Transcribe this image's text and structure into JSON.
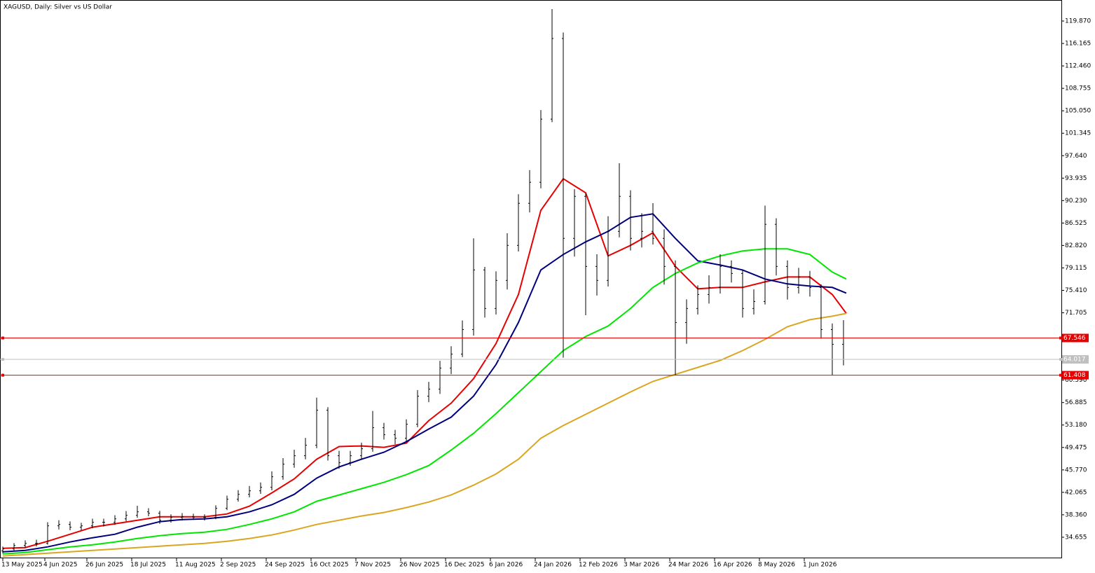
{
  "chart_data": {
    "type": "ohlc",
    "title": "XAGUSD, Daily:  Silver vs US Dollar",
    "color": "#000000",
    "xlim": [
      0,
      378.75
    ],
    "ylim": [
      31.18,
      123.34
    ],
    "x": [
      1,
      5,
      9,
      13,
      17,
      21,
      25,
      29,
      33,
      37,
      41,
      45,
      49,
      53,
      57,
      61,
      65,
      69,
      73,
      77,
      81,
      85,
      89,
      93,
      97,
      101,
      105,
      109,
      113,
      117,
      121,
      125,
      129,
      133,
      137,
      141,
      145,
      149,
      153,
      157,
      161,
      165,
      169,
      173,
      177,
      181,
      185,
      189,
      193,
      197,
      201,
      205,
      209,
      213,
      217,
      221,
      225,
      229,
      233,
      237,
      241,
      245,
      249,
      253,
      257,
      261,
      265,
      269,
      273,
      277,
      281,
      285,
      289,
      293,
      297,
      301
    ],
    "open": [
      32.4,
      32.72,
      33.3,
      33.64,
      33.64,
      36.54,
      36.77,
      36.31,
      36.54,
      37.12,
      37.12,
      37.69,
      38.27,
      38.85,
      38.62,
      37.46,
      37.93,
      38.04,
      37.93,
      37.93,
      39.43,
      40.93,
      41.74,
      42.32,
      42.9,
      44.64,
      46.72,
      48.11,
      49.85,
      55.63,
      48.11,
      46.95,
      48.11,
      49.27,
      52.74,
      51.58,
      51.0,
      53.32,
      57.95,
      59.11,
      62.58,
      64.89,
      68.94,
      78.78,
      72.42,
      77.05,
      82.83,
      89.78,
      93.25,
      103.67,
      116.98,
      83.99,
      90.93,
      79.36,
      77.05,
      85.15,
      90.93,
      83.99,
      85.15,
      83.99,
      79.36,
      70.1,
      72.42,
      74.73,
      75.89,
      79.36,
      78.2,
      72.42,
      73.57,
      86.31,
      79.36,
      75.89,
      77.62,
      75.89,
      68.94,
      66.5
    ],
    "high": [
      33.12,
      33.7,
      34.14,
      34.24,
      37.14,
      37.47,
      37.27,
      37.04,
      37.72,
      37.72,
      38.29,
      38.97,
      39.85,
      39.45,
      39.02,
      38.43,
      38.64,
      38.54,
      38.43,
      39.93,
      41.53,
      42.44,
      43.12,
      43.7,
      45.54,
      47.72,
      49.11,
      51.05,
      57.7,
      56.13,
      48.91,
      48.91,
      50.27,
      55.5,
      53.54,
      52.38,
      54.12,
      58.95,
      60.31,
      63.78,
      66.19,
      70.44,
      84.0,
      79.28,
      78.55,
      84.83,
      91.28,
      95.25,
      105.17,
      121.84,
      117.98,
      92.1,
      91.43,
      81.36,
      87.65,
      96.4,
      91.93,
      88.15,
      89.8,
      85.49,
      80.36,
      73.92,
      76.23,
      77.89,
      81.36,
      80.36,
      78.7,
      75.57,
      89.4,
      87.31,
      80.36,
      79.12,
      78.62,
      76.39,
      69.94,
      70.5
    ],
    "low": [
      32.0,
      32.42,
      32.9,
      33.14,
      33.44,
      35.94,
      35.81,
      35.81,
      36.14,
      36.42,
      36.72,
      37.29,
      37.87,
      38.12,
      36.86,
      37.06,
      37.43,
      37.53,
      37.43,
      37.63,
      39.13,
      40.53,
      41.24,
      41.82,
      42.4,
      44.14,
      46.12,
      47.51,
      49.35,
      47.31,
      45.95,
      46.45,
      47.51,
      48.77,
      50.78,
      50.0,
      50.5,
      52.82,
      56.95,
      58.31,
      61.58,
      64.39,
      67.94,
      70.92,
      71.42,
      75.55,
      81.83,
      88.28,
      92.25,
      103.17,
      64.3,
      80.99,
      71.3,
      74.55,
      76.05,
      84.15,
      81.99,
      82.49,
      82.99,
      76.36,
      61.4,
      66.6,
      71.42,
      73.23,
      74.89,
      76.7,
      70.92,
      71.42,
      73.07,
      77.86,
      73.89,
      74.89,
      74.39,
      67.44,
      61.4,
      63.02
    ],
    "close": [
      32.72,
      33.3,
      33.64,
      33.64,
      36.54,
      36.77,
      36.31,
      36.54,
      37.12,
      37.12,
      37.69,
      38.27,
      38.85,
      38.62,
      37.46,
      37.93,
      38.04,
      37.93,
      37.93,
      39.43,
      40.93,
      41.74,
      42.32,
      42.9,
      44.64,
      46.72,
      48.11,
      49.85,
      55.63,
      48.11,
      46.95,
      48.11,
      49.27,
      52.74,
      51.58,
      51.0,
      53.32,
      57.95,
      59.11,
      62.58,
      64.89,
      68.94,
      78.78,
      72.42,
      77.05,
      82.83,
      89.78,
      93.25,
      103.67,
      116.98,
      83.99,
      90.93,
      79.36,
      77.05,
      85.15,
      90.93,
      83.99,
      85.15,
      83.99,
      79.36,
      70.1,
      72.42,
      74.73,
      75.89,
      79.36,
      78.2,
      72.42,
      73.57,
      86.31,
      79.36,
      75.89,
      77.62,
      75.89,
      68.94,
      66.5,
      64.02
    ],
    "moving_averages": [
      {
        "color": "#e60000",
        "x": [
          1,
          9,
          17,
          25,
          33,
          41,
          49,
          57,
          65,
          73,
          81,
          89,
          97,
          105,
          113,
          121,
          129,
          137,
          145,
          153,
          161,
          169,
          177,
          185,
          193,
          201,
          209,
          217,
          225,
          233,
          241,
          249,
          257,
          265,
          273,
          281,
          289,
          297,
          302
        ],
        "values": [
          32.83,
          32.95,
          33.99,
          35.15,
          36.31,
          36.88,
          37.46,
          38.04,
          38.04,
          38.04,
          38.5,
          39.78,
          41.98,
          44.29,
          47.53,
          49.62,
          49.73,
          49.5,
          50.19,
          53.9,
          56.79,
          60.84,
          66.63,
          74.73,
          88.62,
          93.83,
          91.51,
          81.1,
          82.83,
          84.92,
          79.36,
          75.66,
          75.89,
          75.89,
          76.81,
          77.62,
          77.62,
          74.73,
          71.61
        ]
      },
      {
        "color": "#00007f",
        "x": [
          1,
          9,
          17,
          25,
          33,
          41,
          49,
          57,
          65,
          73,
          81,
          89,
          97,
          105,
          113,
          121,
          129,
          137,
          145,
          153,
          161,
          169,
          177,
          185,
          193,
          201,
          209,
          217,
          225,
          233,
          241,
          249,
          257,
          265,
          273,
          281,
          289,
          297,
          302
        ],
        "values": [
          32.25,
          32.49,
          33.06,
          33.88,
          34.57,
          35.15,
          36.31,
          37.23,
          37.58,
          37.69,
          38.04,
          38.85,
          40.01,
          41.74,
          44.41,
          46.26,
          47.53,
          48.69,
          50.43,
          52.51,
          54.48,
          57.95,
          63.16,
          70.1,
          78.78,
          81.33,
          83.41,
          85.15,
          87.46,
          88.04,
          83.99,
          80.29,
          79.59,
          78.78,
          77.28,
          76.47,
          76.12,
          75.89,
          74.96
        ]
      },
      {
        "color": "#00e600",
        "x": [
          1,
          9,
          17,
          25,
          33,
          41,
          49,
          57,
          65,
          73,
          81,
          89,
          97,
          105,
          113,
          121,
          129,
          137,
          145,
          153,
          161,
          169,
          177,
          185,
          193,
          201,
          209,
          217,
          225,
          233,
          241,
          249,
          257,
          265,
          273,
          281,
          289,
          297,
          302
        ],
        "values": [
          31.91,
          32.14,
          32.6,
          33.06,
          33.41,
          33.88,
          34.45,
          34.92,
          35.26,
          35.49,
          35.96,
          36.77,
          37.69,
          38.85,
          40.59,
          41.63,
          42.67,
          43.71,
          44.99,
          46.49,
          49.04,
          51.81,
          55.06,
          58.53,
          62.0,
          65.47,
          67.79,
          69.52,
          72.42,
          75.89,
          78.2,
          79.94,
          81.1,
          81.91,
          82.25,
          82.25,
          81.33,
          78.43,
          77.28
        ]
      },
      {
        "color": "#daa520",
        "x": [
          1,
          9,
          17,
          25,
          33,
          41,
          49,
          57,
          65,
          73,
          81,
          89,
          97,
          105,
          113,
          121,
          129,
          137,
          145,
          153,
          161,
          169,
          177,
          185,
          193,
          201,
          209,
          217,
          225,
          233,
          241,
          249,
          257,
          265,
          273,
          281,
          289,
          297,
          302
        ],
        "values": [
          31.56,
          31.79,
          32.02,
          32.25,
          32.49,
          32.72,
          32.95,
          33.18,
          33.41,
          33.64,
          33.99,
          34.45,
          35.03,
          35.84,
          36.77,
          37.46,
          38.16,
          38.74,
          39.55,
          40.47,
          41.63,
          43.25,
          45.1,
          47.53,
          51.0,
          53.09,
          54.94,
          56.79,
          58.64,
          60.38,
          61.54,
          62.69,
          63.85,
          65.47,
          67.32,
          69.41,
          70.56,
          71.14,
          71.61
        ]
      }
    ],
    "levels": [
      {
        "value": 67.546,
        "color": "#e60000"
      },
      {
        "value": 64.017,
        "color": "#c0c0c0"
      },
      {
        "value": 61.408,
        "color": "#e60000"
      }
    ],
    "yticks": [
      {
        "value": 119.87,
        "label": "119.870"
      },
      116.165,
      {
        "value": 112.46,
        "label": "112.460"
      },
      108.755,
      {
        "value": 105.05,
        "label": "105.050"
      },
      101.345,
      {
        "value": 97.64,
        "label": "97.640"
      },
      93.935,
      {
        "value": 90.23,
        "label": "90.230"
      },
      86.525,
      {
        "value": 82.82,
        "label": "82.820"
      },
      79.115,
      {
        "value": 75.41,
        "label": "75.410"
      },
      71.705,
      {
        "value": 60.59,
        "label": "60.590"
      },
      56.885,
      {
        "value": 53.18,
        "label": "53.180"
      },
      49.475,
      {
        "value": 45.77,
        "label": "45.770"
      },
      42.065,
      {
        "value": 38.36,
        "label": "38.360"
      },
      34.655
    ],
    "xticks": [
      {
        "value": 1,
        "label": "13 May 2025"
      },
      {
        "value": 16,
        "label": "4 Jun 2025"
      },
      {
        "value": 31,
        "label": "26 Jun 2025"
      },
      {
        "value": 47,
        "label": "18 Jul 2025"
      },
      {
        "value": 63,
        "label": "11 Aug 2025"
      },
      {
        "value": 79,
        "label": "2 Sep 2025"
      },
      {
        "value": 95,
        "label": "24 Sep 2025"
      },
      {
        "value": 111,
        "label": "16 Oct 2025"
      },
      {
        "value": 127,
        "label": "7 Nov 2025"
      },
      {
        "value": 143,
        "label": "26 Nov 2025"
      },
      {
        "value": 159,
        "label": "16 Dec 2025"
      },
      {
        "value": 175,
        "label": "6 Jan 2026"
      },
      {
        "value": 191,
        "label": "24 Jan 2026"
      },
      {
        "value": 207,
        "label": "12 Feb 2026"
      },
      {
        "value": 223,
        "label": "3 Mar 2026"
      },
      {
        "value": 239,
        "label": "24 Mar 2026"
      },
      {
        "value": 255,
        "label": "16 Apr 2026"
      },
      {
        "value": 271,
        "label": "8 May 2026"
      },
      {
        "value": 287,
        "label": "1 Jun 2026"
      }
    ]
  }
}
